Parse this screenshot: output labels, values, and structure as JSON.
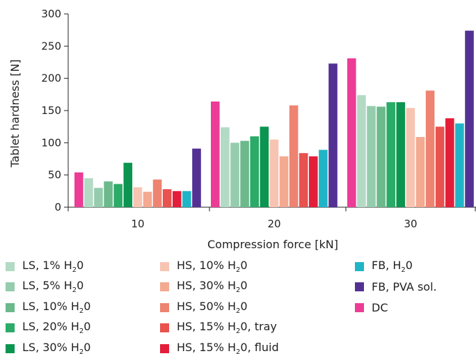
{
  "chart_data": {
    "type": "bar",
    "xlabel": "Compression force [kN]",
    "ylabel": "Tablet hardness [N]",
    "ylim": [
      0,
      300
    ],
    "yticks": [
      0,
      50,
      100,
      150,
      200,
      250,
      300
    ],
    "categories": [
      "10",
      "20",
      "30"
    ],
    "series": [
      {
        "name": "DC",
        "color": "#ec3c96",
        "values": [
          54,
          164,
          231
        ]
      },
      {
        "name": "LS, 1% H20",
        "color": "#b3dac4",
        "values": [
          45,
          124,
          174
        ]
      },
      {
        "name": "LS, 5% H20",
        "color": "#95ccad",
        "values": [
          30,
          100,
          157
        ]
      },
      {
        "name": "LS, 10% H20",
        "color": "#6cb98c",
        "values": [
          40,
          103,
          156
        ]
      },
      {
        "name": "LS, 20% H20",
        "color": "#2bab68",
        "values": [
          36,
          110,
          163
        ]
      },
      {
        "name": "LS, 30% H20",
        "color": "#0c9550",
        "values": [
          69,
          125,
          163
        ]
      },
      {
        "name": "HS, 10% H20",
        "color": "#f8c4b2",
        "values": [
          31,
          105,
          154
        ]
      },
      {
        "name": "HS, 30% H20",
        "color": "#f4a991",
        "values": [
          24,
          79,
          109
        ]
      },
      {
        "name": "HS, 50% H20",
        "color": "#ee8371",
        "values": [
          43,
          158,
          181
        ]
      },
      {
        "name": "HS, 15% H20, tray",
        "color": "#e8524f",
        "values": [
          28,
          84,
          125
        ]
      },
      {
        "name": "HS, 15% H20, fluid",
        "color": "#e31e3a",
        "values": [
          25,
          79,
          138
        ]
      },
      {
        "name": "FB, H20",
        "color": "#20b5c6",
        "values": [
          25,
          89,
          130
        ]
      },
      {
        "name": "FB, PVA sol.",
        "color": "#533194",
        "values": [
          91,
          223,
          274
        ]
      }
    ]
  },
  "legend": [
    {
      "name": "LS, 1% H20",
      "pre": "LS, 1% H",
      "sub": "2",
      "post": "0",
      "color": "#b3dac4"
    },
    {
      "name": "LS, 5% H20",
      "pre": "LS, 5% H",
      "sub": "2",
      "post": "0",
      "color": "#95ccad"
    },
    {
      "name": "LS, 10% H20",
      "pre": "LS, 10% H",
      "sub": "2",
      "post": "0",
      "color": "#6cb98c"
    },
    {
      "name": "LS, 20% H20",
      "pre": "LS, 20% H",
      "sub": "2",
      "post": "0",
      "color": "#2bab68"
    },
    {
      "name": "LS, 30% H20",
      "pre": "LS, 30% H",
      "sub": "2",
      "post": "0",
      "color": "#0c9550"
    },
    {
      "name": "HS, 10% H20",
      "pre": "HS, 10% H",
      "sub": "2",
      "post": "0",
      "color": "#f8c4b2"
    },
    {
      "name": "HS, 30% H20",
      "pre": "HS, 30% H",
      "sub": "2",
      "post": "0",
      "color": "#f4a991"
    },
    {
      "name": "HS, 50% H20",
      "pre": "HS, 50% H",
      "sub": "2",
      "post": "0",
      "color": "#ee8371"
    },
    {
      "name": "HS, 15% H20, tray",
      "pre": "HS, 15% H",
      "sub": "2",
      "post": "0, tray",
      "color": "#e8524f"
    },
    {
      "name": "HS, 15% H20, fluid",
      "pre": "HS, 15% H",
      "sub": "2",
      "post": "0, fluid",
      "color": "#e31e3a"
    },
    {
      "name": "FB, H20",
      "pre": "FB, H",
      "sub": "2",
      "post": "0",
      "color": "#20b5c6"
    },
    {
      "name": "FB, PVA sol.",
      "pre": "FB, PVA sol.",
      "sub": "",
      "post": "",
      "color": "#533194"
    },
    {
      "name": "DC",
      "pre": "DC",
      "sub": "",
      "post": "",
      "color": "#ec3c96"
    }
  ]
}
